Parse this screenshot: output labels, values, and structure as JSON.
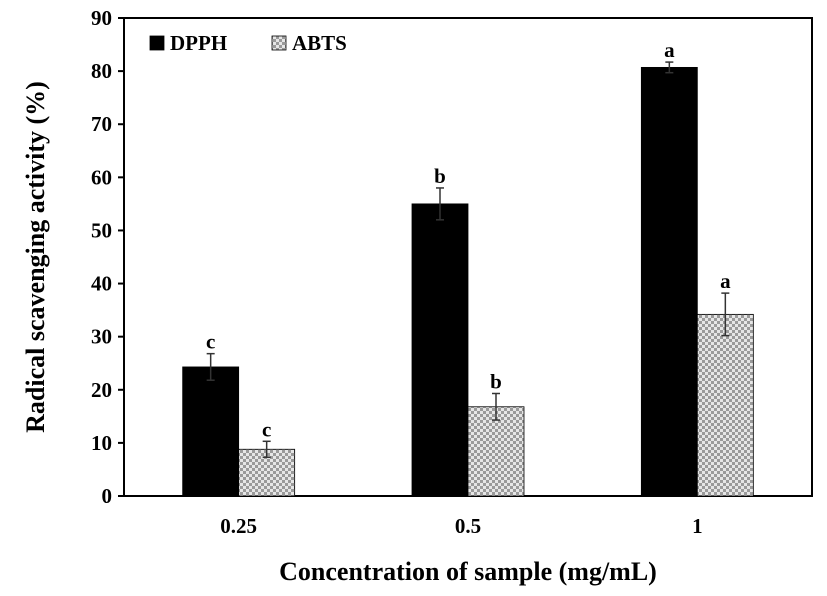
{
  "chart_data": {
    "type": "bar",
    "title": "",
    "xlabel": "Concentration of sample (mg/mL)",
    "ylabel": "Radical scavenging activity (%)",
    "categories": [
      "0.25",
      "0.5",
      "1"
    ],
    "ylim": [
      0,
      90
    ],
    "yticks": [
      0,
      10,
      20,
      30,
      40,
      50,
      60,
      70,
      80,
      90
    ],
    "grid": false,
    "legend_position": "top-left",
    "series": [
      {
        "name": "DPPH",
        "color": "#000000",
        "pattern": "solid",
        "values": [
          24.3,
          55.0,
          80.7
        ],
        "errors": [
          2.5,
          3.0,
          1.0
        ],
        "labels": [
          "c",
          "b",
          "a"
        ]
      },
      {
        "name": "ABTS",
        "color": "#c8c8c8",
        "pattern": "checker",
        "values": [
          8.8,
          16.8,
          34.2
        ],
        "errors": [
          1.5,
          2.5,
          4.0
        ],
        "labels": [
          "c",
          "b",
          "a"
        ]
      }
    ]
  }
}
